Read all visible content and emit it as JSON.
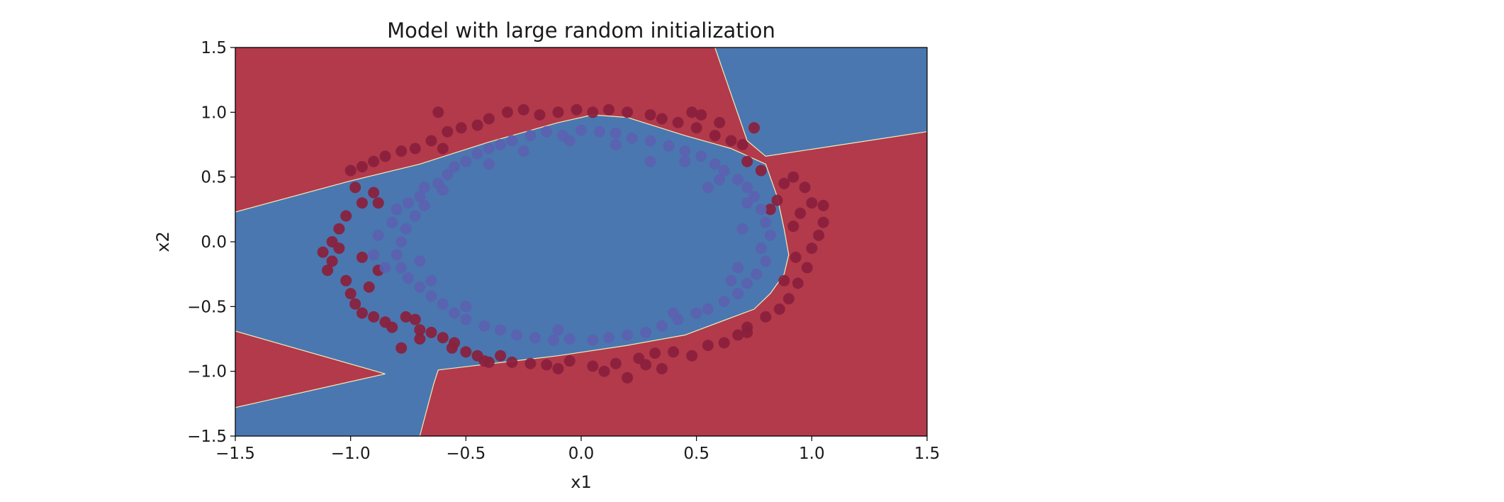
{
  "chart_data": {
    "type": "scatter",
    "title": "Model with large random initialization",
    "xlabel": "x1",
    "ylabel": "x2",
    "xlim": [
      -1.5,
      1.5
    ],
    "ylim": [
      -1.5,
      1.5
    ],
    "xticks": [
      "−1.5",
      "−1.0",
      "−0.5",
      "0.0",
      "0.5",
      "1.0",
      "1.5"
    ],
    "yticks": [
      "1.5",
      "1.0",
      "0.5",
      "0.0",
      "−0.5",
      "−1.0",
      "−1.5"
    ],
    "grid": false,
    "legend": "none",
    "background": {
      "type": "decision_boundary",
      "regions": [
        {
          "label": 0,
          "color": "#b23a4b",
          "polygon": [
            [
              -1.5,
              1.5
            ],
            [
              1.5,
              1.5
            ],
            [
              1.5,
              -1.5
            ],
            [
              -1.5,
              -1.5
            ]
          ]
        },
        {
          "label": 1,
          "color": "#4a77b0",
          "polygon": [
            [
              -1.5,
              0.23
            ],
            [
              -1.0,
              0.47
            ],
            [
              -0.7,
              0.6
            ],
            [
              -0.4,
              0.77
            ],
            [
              -0.1,
              0.92
            ],
            [
              0.05,
              0.98
            ],
            [
              0.2,
              0.96
            ],
            [
              0.45,
              0.82
            ],
            [
              0.65,
              0.72
            ],
            [
              0.8,
              0.6
            ],
            [
              0.85,
              0.35
            ],
            [
              0.88,
              0.1
            ],
            [
              0.9,
              -0.1
            ],
            [
              0.88,
              -0.25
            ],
            [
              0.82,
              -0.4
            ],
            [
              0.75,
              -0.52
            ],
            [
              0.45,
              -0.72
            ],
            [
              0.2,
              -0.8
            ],
            [
              -0.1,
              -0.88
            ],
            [
              -0.62,
              -0.99
            ],
            [
              -0.64,
              -1.1
            ],
            [
              -0.7,
              -1.5
            ],
            [
              -1.5,
              -1.5
            ],
            [
              -1.5,
              -1.28
            ],
            [
              -0.85,
              -1.02
            ],
            [
              -1.5,
              -0.69
            ]
          ]
        },
        {
          "label": 1,
          "color": "#4a77b0",
          "polygon": [
            [
              0.58,
              1.5
            ],
            [
              1.5,
              1.5
            ],
            [
              1.5,
              0.85
            ],
            [
              0.8,
              0.66
            ],
            [
              0.72,
              0.78
            ]
          ]
        }
      ]
    },
    "series": [
      {
        "color": "#8a1f3c",
        "points": [
          [
            -1.12,
            -0.08
          ],
          [
            -1.08,
            -0.15
          ],
          [
            -1.1,
            -0.22
          ],
          [
            -1.05,
            -0.05
          ],
          [
            -1.02,
            -0.3
          ],
          [
            -1.0,
            -0.4
          ],
          [
            -0.98,
            -0.48
          ],
          [
            -0.95,
            -0.55
          ],
          [
            -0.9,
            -0.58
          ],
          [
            -0.85,
            -0.62
          ],
          [
            -0.82,
            -0.66
          ],
          [
            -0.76,
            -0.58
          ],
          [
            -0.72,
            -0.6
          ],
          [
            -0.7,
            -0.68
          ],
          [
            -0.65,
            -0.7
          ],
          [
            -0.6,
            -0.74
          ],
          [
            -0.56,
            -0.82
          ],
          [
            -0.5,
            -0.85
          ],
          [
            -0.45,
            -0.88
          ],
          [
            -0.42,
            -0.92
          ],
          [
            -0.35,
            -0.88
          ],
          [
            -0.3,
            -0.93
          ],
          [
            -0.22,
            -0.94
          ],
          [
            -0.15,
            -0.95
          ],
          [
            -0.05,
            -0.92
          ],
          [
            0.05,
            -0.96
          ],
          [
            0.15,
            -0.94
          ],
          [
            0.25,
            -0.9
          ],
          [
            0.32,
            -0.86
          ],
          [
            0.4,
            -0.85
          ],
          [
            0.48,
            -0.88
          ],
          [
            0.55,
            -0.8
          ],
          [
            0.62,
            -0.78
          ],
          [
            0.68,
            -0.72
          ],
          [
            0.72,
            -0.66
          ],
          [
            0.8,
            -0.58
          ],
          [
            0.86,
            -0.52
          ],
          [
            0.9,
            -0.44
          ],
          [
            0.94,
            -0.32
          ],
          [
            0.98,
            -0.2
          ],
          [
            1.0,
            -0.05
          ],
          [
            1.03,
            0.05
          ],
          [
            1.05,
            0.15
          ],
          [
            1.05,
            0.28
          ],
          [
            1.0,
            0.3
          ],
          [
            0.97,
            0.42
          ],
          [
            0.92,
            0.5
          ],
          [
            0.88,
            0.45
          ],
          [
            0.85,
            0.32
          ],
          [
            0.82,
            0.25
          ],
          [
            0.78,
            0.55
          ],
          [
            0.72,
            0.62
          ],
          [
            0.7,
            0.75
          ],
          [
            0.65,
            0.78
          ],
          [
            0.58,
            0.82
          ],
          [
            0.5,
            0.88
          ],
          [
            0.42,
            0.92
          ],
          [
            0.35,
            0.95
          ],
          [
            0.3,
            0.98
          ],
          [
            0.2,
            1.0
          ],
          [
            0.12,
            1.02
          ],
          [
            0.05,
            1.0
          ],
          [
            -0.02,
            1.02
          ],
          [
            -0.1,
            1.0
          ],
          [
            -0.18,
            0.98
          ],
          [
            -0.25,
            1.02
          ],
          [
            -0.32,
            1.0
          ],
          [
            -0.4,
            0.95
          ],
          [
            -0.45,
            0.9
          ],
          [
            -0.52,
            0.88
          ],
          [
            -0.58,
            0.85
          ],
          [
            -0.65,
            0.78
          ],
          [
            -0.72,
            0.72
          ],
          [
            -0.78,
            0.7
          ],
          [
            -0.85,
            0.66
          ],
          [
            -0.9,
            0.62
          ],
          [
            -0.95,
            0.58
          ],
          [
            -1.0,
            0.55
          ],
          [
            -0.98,
            0.42
          ],
          [
            -0.95,
            0.3
          ],
          [
            -1.02,
            0.2
          ],
          [
            -1.05,
            0.1
          ],
          [
            -1.08,
            0.0
          ],
          [
            -0.9,
            0.38
          ],
          [
            -0.88,
            0.3
          ],
          [
            -0.6,
            0.72
          ],
          [
            -0.62,
            1.0
          ],
          [
            0.48,
            1.0
          ],
          [
            0.52,
            0.98
          ],
          [
            0.6,
            0.92
          ],
          [
            0.75,
            0.88
          ],
          [
            0.92,
            0.12
          ],
          [
            0.95,
            0.22
          ],
          [
            0.93,
            -0.12
          ],
          [
            0.88,
            -0.3
          ],
          [
            0.72,
            -0.7
          ],
          [
            -0.78,
            -0.82
          ],
          [
            -0.7,
            -0.75
          ],
          [
            -0.4,
            -0.93
          ],
          [
            0.2,
            -1.05
          ],
          [
            0.1,
            -1.0
          ],
          [
            -0.1,
            -0.98
          ],
          [
            0.35,
            -0.98
          ],
          [
            0.28,
            -0.95
          ],
          [
            -0.55,
            -0.78
          ],
          [
            -0.88,
            -0.22
          ],
          [
            -0.92,
            -0.35
          ],
          [
            -0.95,
            -0.12
          ]
        ]
      },
      {
        "color": "#5a62b0",
        "points": [
          [
            -0.9,
            -0.1
          ],
          [
            -0.85,
            -0.2
          ],
          [
            -0.88,
            0.05
          ],
          [
            -0.82,
            0.15
          ],
          [
            -0.8,
            0.25
          ],
          [
            -0.75,
            0.3
          ],
          [
            -0.7,
            0.35
          ],
          [
            -0.68,
            0.42
          ],
          [
            -0.62,
            0.45
          ],
          [
            -0.58,
            0.52
          ],
          [
            -0.55,
            0.58
          ],
          [
            -0.5,
            0.62
          ],
          [
            -0.45,
            0.68
          ],
          [
            -0.4,
            0.72
          ],
          [
            -0.35,
            0.75
          ],
          [
            -0.3,
            0.78
          ],
          [
            -0.22,
            0.82
          ],
          [
            -0.15,
            0.85
          ],
          [
            -0.08,
            0.82
          ],
          [
            0.0,
            0.86
          ],
          [
            0.08,
            0.85
          ],
          [
            0.15,
            0.84
          ],
          [
            0.22,
            0.8
          ],
          [
            0.3,
            0.78
          ],
          [
            0.38,
            0.74
          ],
          [
            0.45,
            0.7
          ],
          [
            0.52,
            0.66
          ],
          [
            0.58,
            0.6
          ],
          [
            0.62,
            0.55
          ],
          [
            0.68,
            0.48
          ],
          [
            0.72,
            0.42
          ],
          [
            0.75,
            0.35
          ],
          [
            0.78,
            0.25
          ],
          [
            0.8,
            0.15
          ],
          [
            0.82,
            0.05
          ],
          [
            0.78,
            -0.05
          ],
          [
            0.8,
            -0.15
          ],
          [
            0.76,
            -0.25
          ],
          [
            0.72,
            -0.32
          ],
          [
            0.68,
            -0.4
          ],
          [
            0.62,
            -0.46
          ],
          [
            0.55,
            -0.52
          ],
          [
            0.5,
            -0.55
          ],
          [
            0.42,
            -0.6
          ],
          [
            0.35,
            -0.65
          ],
          [
            0.28,
            -0.7
          ],
          [
            0.2,
            -0.72
          ],
          [
            0.12,
            -0.74
          ],
          [
            0.05,
            -0.76
          ],
          [
            -0.05,
            -0.75
          ],
          [
            -0.12,
            -0.76
          ],
          [
            -0.2,
            -0.74
          ],
          [
            -0.28,
            -0.72
          ],
          [
            -0.35,
            -0.68
          ],
          [
            -0.42,
            -0.65
          ],
          [
            -0.5,
            -0.6
          ],
          [
            -0.55,
            -0.55
          ],
          [
            -0.6,
            -0.48
          ],
          [
            -0.65,
            -0.42
          ],
          [
            -0.7,
            -0.35
          ],
          [
            -0.75,
            -0.28
          ],
          [
            -0.78,
            -0.2
          ],
          [
            -0.8,
            -0.1
          ],
          [
            -0.72,
            0.2
          ],
          [
            -0.68,
            0.28
          ],
          [
            -0.6,
            0.4
          ],
          [
            -0.4,
            0.6
          ],
          [
            0.3,
            0.62
          ],
          [
            0.6,
            0.48
          ],
          [
            0.7,
            0.1
          ],
          [
            0.68,
            -0.2
          ],
          [
            0.4,
            -0.55
          ],
          [
            -0.1,
            -0.68
          ],
          [
            -0.5,
            -0.5
          ],
          [
            -0.65,
            -0.3
          ],
          [
            -0.78,
            0.0
          ],
          [
            -0.76,
            0.1
          ],
          [
            -0.7,
            -0.15
          ],
          [
            0.72,
            0.3
          ],
          [
            0.65,
            -0.3
          ],
          [
            0.15,
            0.75
          ],
          [
            -0.25,
            0.7
          ],
          [
            -0.05,
            0.78
          ],
          [
            0.45,
            0.62
          ],
          [
            0.55,
            0.42
          ]
        ]
      }
    ]
  }
}
